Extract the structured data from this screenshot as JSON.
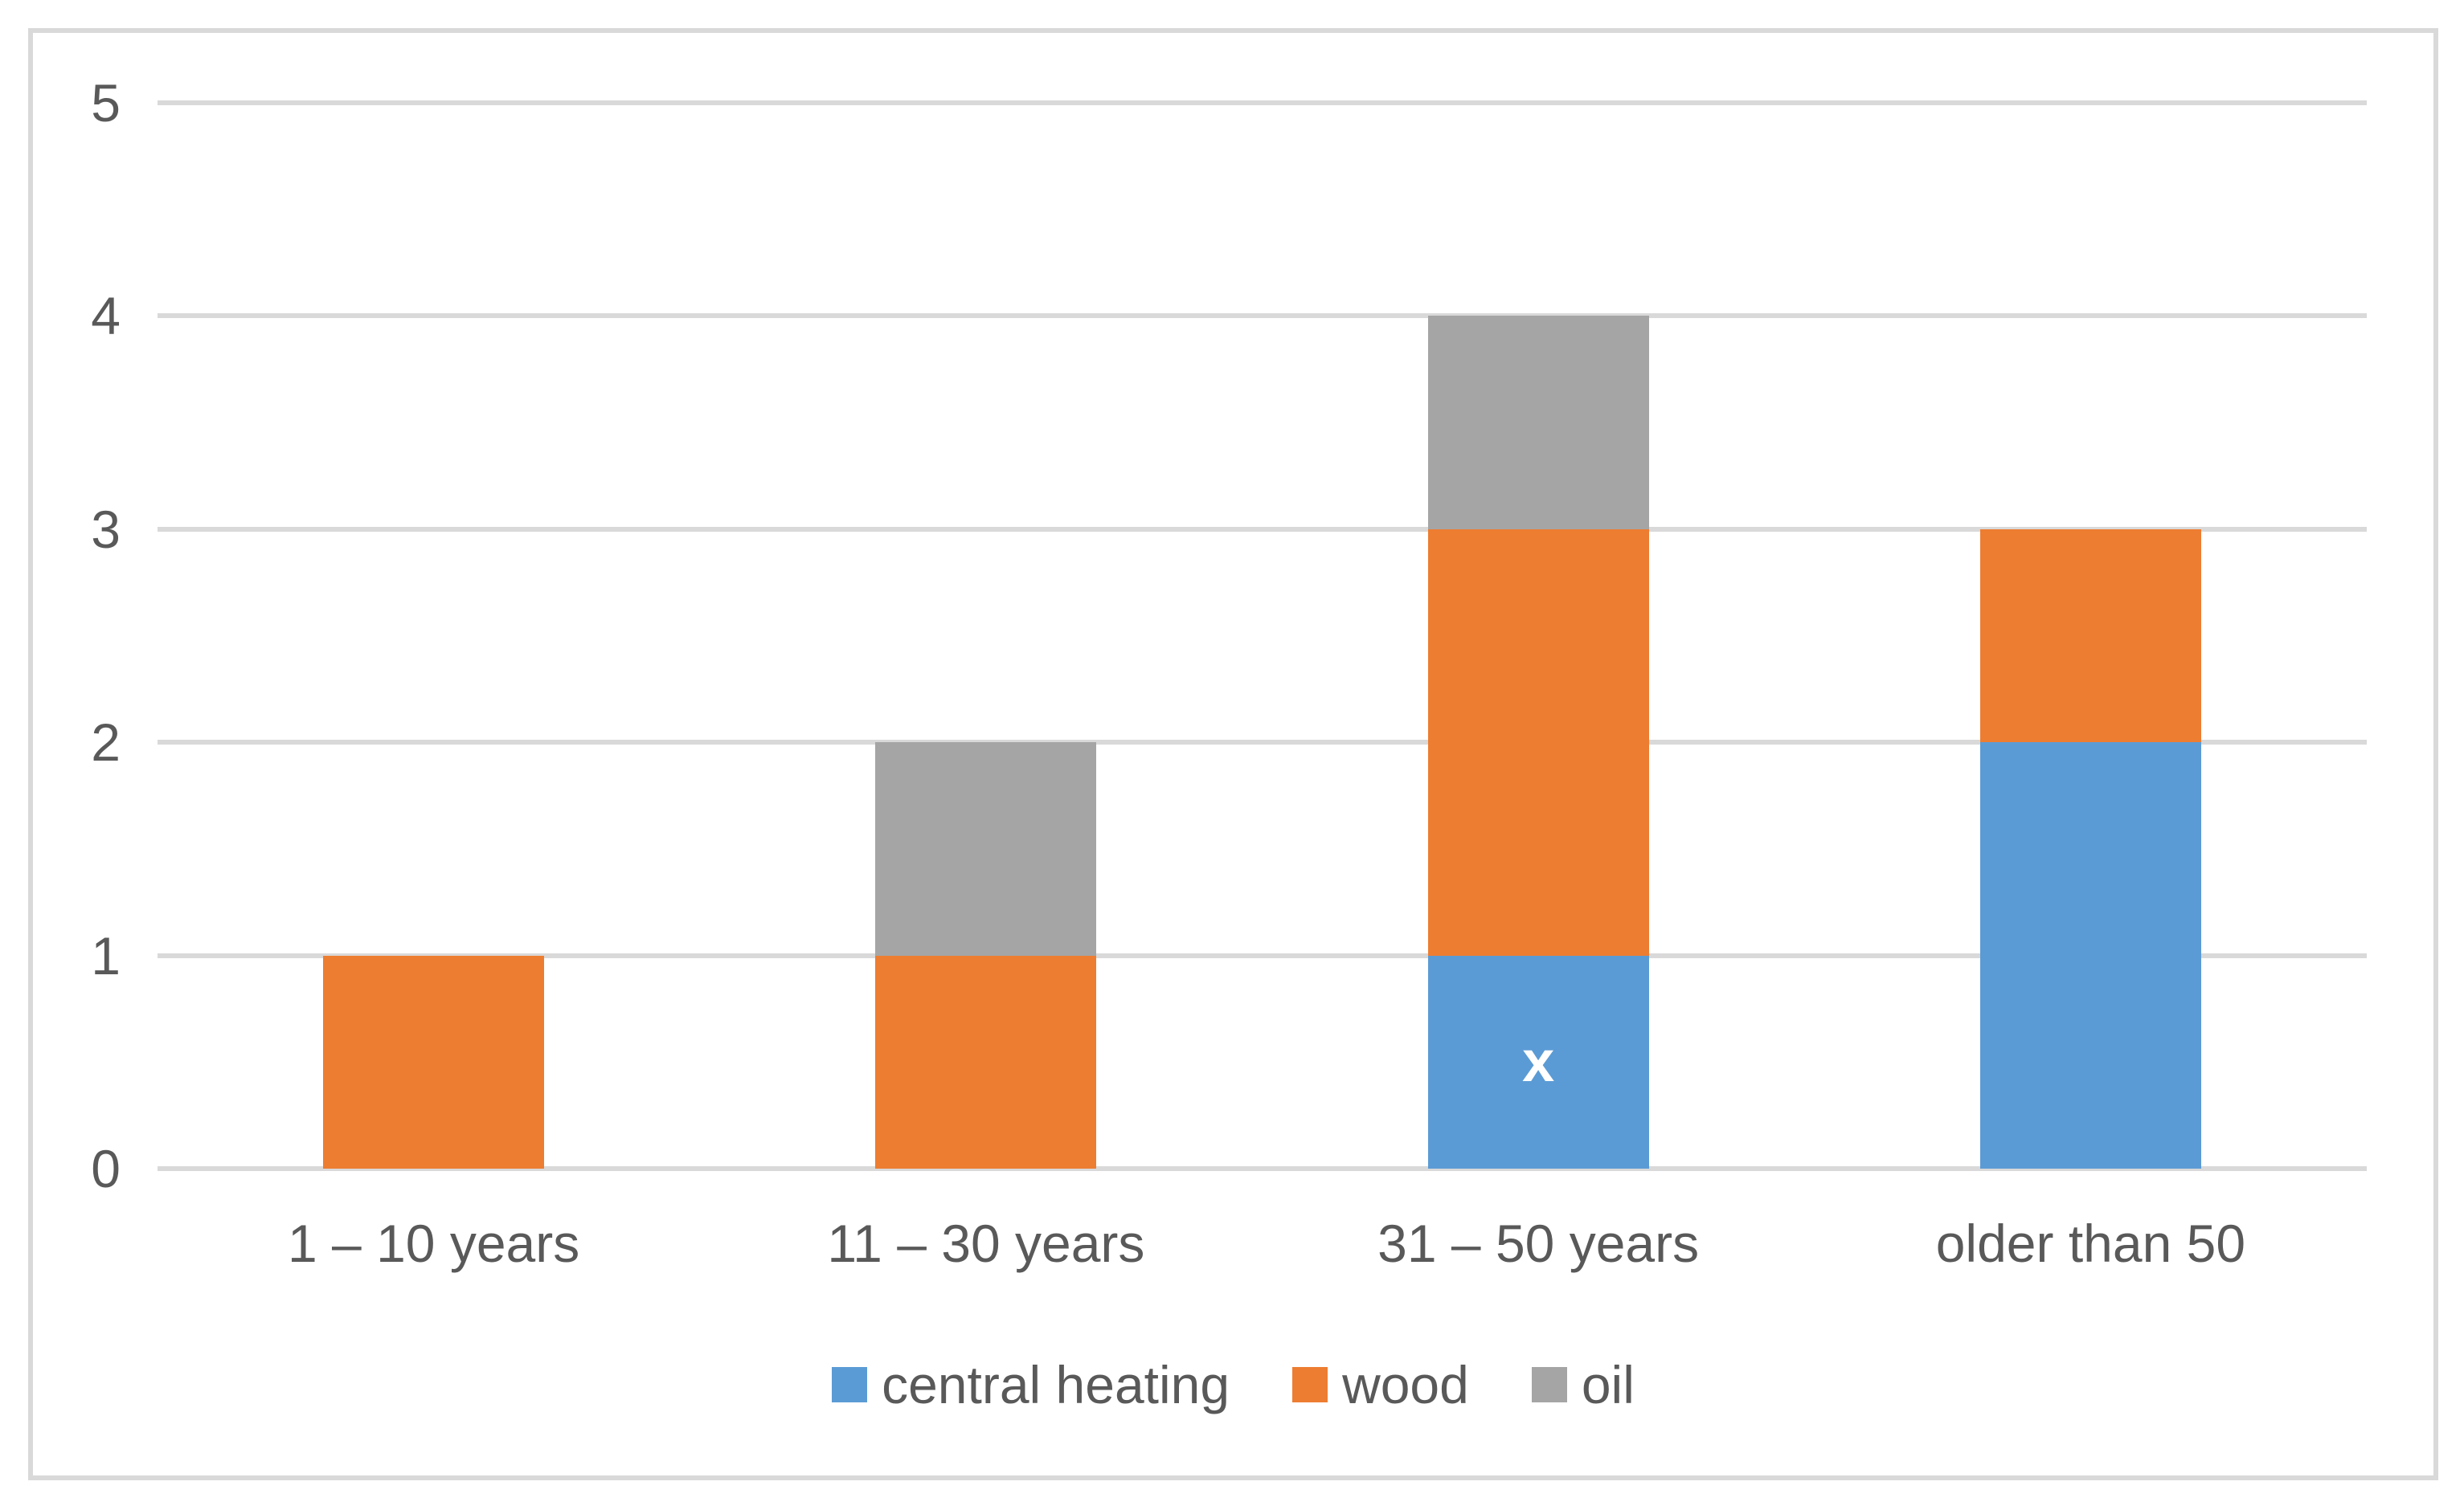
{
  "chart": {
    "background_color": "#ffffff",
    "frame_border_color": "#d9d9d9",
    "gridline_color": "#d9d9d9",
    "axis_text_color": "#595959",
    "legend_text_color": "#595959"
  },
  "chart_data": {
    "type": "bar",
    "stacked": true,
    "title": "",
    "xlabel": "",
    "ylabel": "",
    "categories": [
      "1 – 10 years",
      "11 – 30 years",
      "31 – 50 years",
      "older than 50"
    ],
    "series": [
      {
        "name": "central heating",
        "color": "#5b9bd5",
        "values": [
          0,
          0,
          1,
          2
        ]
      },
      {
        "name": "wood",
        "color": "#ed7d31",
        "values": [
          1,
          1,
          2,
          1
        ]
      },
      {
        "name": "oil",
        "color": "#a5a5a5",
        "values": [
          0,
          1,
          1,
          0
        ]
      }
    ],
    "ylim": [
      0,
      5
    ],
    "yticks": [
      0,
      1,
      2,
      3,
      4,
      5
    ],
    "grid": true,
    "legend_position": "bottom",
    "annotations": [
      {
        "category_index": 2,
        "series": "central heating",
        "text": "x",
        "color": "#ffffff"
      }
    ]
  }
}
